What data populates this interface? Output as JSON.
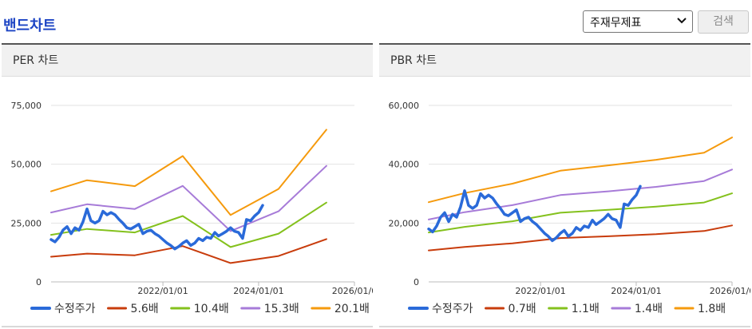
{
  "header": {
    "title": "밴드차트",
    "select_value": "주재무제표",
    "search_label": "검색"
  },
  "chart_data": [
    {
      "type": "line",
      "title": "PER 차트",
      "ylim": [
        0,
        75000
      ],
      "yticks": [
        0,
        25000,
        50000,
        75000
      ],
      "ytick_labels": [
        "0",
        "25,000",
        "50,000",
        "75,000"
      ],
      "xlim": [
        "2019-09-01",
        "2026-01-01"
      ],
      "xtick_labels": [
        "2022/01/01",
        "2024/01/01",
        "2026/01/0"
      ],
      "xticks": [
        "2022-01-01",
        "2024-01-01",
        "2026-01-01"
      ],
      "legend_position": "bottom",
      "grid": true,
      "series": [
        {
          "name": "수정주가",
          "color": "#2a6ad9",
          "points": [
            [
              "2019-09",
              18000
            ],
            [
              "2019-10",
              17000
            ],
            [
              "2019-11",
              19000
            ],
            [
              "2019-12",
              22000
            ],
            [
              "2020-01",
              23500
            ],
            [
              "2020-02",
              20500
            ],
            [
              "2020-03",
              23000
            ],
            [
              "2020-04",
              22000
            ],
            [
              "2020-05",
              25500
            ],
            [
              "2020-06",
              31000
            ],
            [
              "2020-07",
              26000
            ],
            [
              "2020-08",
              25000
            ],
            [
              "2020-09",
              26000
            ],
            [
              "2020-10",
              30000
            ],
            [
              "2020-11",
              28500
            ],
            [
              "2020-12",
              29500
            ],
            [
              "2021-01",
              28500
            ],
            [
              "2021-02",
              26500
            ],
            [
              "2021-03",
              25000
            ],
            [
              "2021-04",
              23000
            ],
            [
              "2021-05",
              22500
            ],
            [
              "2021-06",
              23500
            ],
            [
              "2021-07",
              24500
            ],
            [
              "2021-08",
              20500
            ],
            [
              "2021-09",
              21500
            ],
            [
              "2021-10",
              22000
            ],
            [
              "2021-11",
              20500
            ],
            [
              "2021-12",
              19500
            ],
            [
              "2022-01",
              18000
            ],
            [
              "2022-02",
              16500
            ],
            [
              "2022-03",
              15500
            ],
            [
              "2022-04",
              14000
            ],
            [
              "2022-05",
              15000
            ],
            [
              "2022-06",
              16500
            ],
            [
              "2022-07",
              17500
            ],
            [
              "2022-08",
              15500
            ],
            [
              "2022-09",
              16500
            ],
            [
              "2022-10",
              18500
            ],
            [
              "2022-11",
              17500
            ],
            [
              "2022-12",
              19000
            ],
            [
              "2023-01",
              18500
            ],
            [
              "2023-02",
              21000
            ],
            [
              "2023-03",
              19500
            ],
            [
              "2023-04",
              20500
            ],
            [
              "2023-05",
              21500
            ],
            [
              "2023-06",
              23000
            ],
            [
              "2023-07",
              21500
            ],
            [
              "2023-08",
              21000
            ],
            [
              "2023-09",
              18500
            ],
            [
              "2023-10",
              26500
            ],
            [
              "2023-11",
              26000
            ],
            [
              "2023-12",
              28000
            ],
            [
              "2024-01",
              29500
            ],
            [
              "2024-02",
              32500
            ]
          ]
        },
        {
          "name": "5.6배",
          "color": "#c83c0c",
          "points": [
            [
              "2019-09",
              10700
            ],
            [
              "2020-06",
              12000
            ],
            [
              "2021-06",
              11300
            ],
            [
              "2022-06",
              15200
            ],
            [
              "2023-06",
              8000
            ],
            [
              "2024-06",
              11000
            ],
            [
              "2025-06",
              18200
            ]
          ]
        },
        {
          "name": "10.4배",
          "color": "#84c11d",
          "points": [
            [
              "2019-09",
              20000
            ],
            [
              "2020-06",
              22500
            ],
            [
              "2021-06",
              21000
            ],
            [
              "2022-06",
              28000
            ],
            [
              "2023-06",
              14800
            ],
            [
              "2024-06",
              20500
            ],
            [
              "2025-06",
              33700
            ]
          ]
        },
        {
          "name": "15.3배",
          "color": "#a77bd8",
          "points": [
            [
              "2019-09",
              29500
            ],
            [
              "2020-06",
              33000
            ],
            [
              "2021-06",
              31000
            ],
            [
              "2022-06",
              40800
            ],
            [
              "2023-06",
              21600
            ],
            [
              "2024-06",
              30000
            ],
            [
              "2025-06",
              49300
            ]
          ]
        },
        {
          "name": "20.1배",
          "color": "#f59a0d",
          "points": [
            [
              "2019-09",
              38500
            ],
            [
              "2020-06",
              43200
            ],
            [
              "2021-06",
              40700
            ],
            [
              "2022-06",
              53500
            ],
            [
              "2023-06",
              28400
            ],
            [
              "2024-06",
              39500
            ],
            [
              "2025-06",
              64700
            ]
          ]
        }
      ]
    },
    {
      "type": "line",
      "title": "PBR 차트",
      "ylim": [
        0,
        60000
      ],
      "yticks": [
        0,
        20000,
        40000,
        60000
      ],
      "ytick_labels": [
        "0",
        "20,000",
        "40,000",
        "60,000"
      ],
      "xlim": [
        "2019-09-01",
        "2026-01-01"
      ],
      "xtick_labels": [
        "2022/01/01",
        "2024/01/01",
        "2026/01/0"
      ],
      "xticks": [
        "2022-01-01",
        "2024-01-01",
        "2026-01-01"
      ],
      "legend_position": "bottom",
      "grid": true,
      "series": [
        {
          "name": "수정주가",
          "color": "#2a6ad9",
          "points": [
            [
              "2019-09",
              18000
            ],
            [
              "2019-10",
              17000
            ],
            [
              "2019-11",
              19000
            ],
            [
              "2019-12",
              22000
            ],
            [
              "2020-01",
              23500
            ],
            [
              "2020-02",
              20500
            ],
            [
              "2020-03",
              23000
            ],
            [
              "2020-04",
              22000
            ],
            [
              "2020-05",
              25500
            ],
            [
              "2020-06",
              31000
            ],
            [
              "2020-07",
              26000
            ],
            [
              "2020-08",
              25000
            ],
            [
              "2020-09",
              26000
            ],
            [
              "2020-10",
              30000
            ],
            [
              "2020-11",
              28500
            ],
            [
              "2020-12",
              29500
            ],
            [
              "2021-01",
              28500
            ],
            [
              "2021-02",
              26500
            ],
            [
              "2021-03",
              25000
            ],
            [
              "2021-04",
              23000
            ],
            [
              "2021-05",
              22500
            ],
            [
              "2021-06",
              23500
            ],
            [
              "2021-07",
              24500
            ],
            [
              "2021-08",
              20500
            ],
            [
              "2021-09",
              21500
            ],
            [
              "2021-10",
              22000
            ],
            [
              "2021-11",
              20500
            ],
            [
              "2021-12",
              19500
            ],
            [
              "2022-01",
              18000
            ],
            [
              "2022-02",
              16500
            ],
            [
              "2022-03",
              15500
            ],
            [
              "2022-04",
              14000
            ],
            [
              "2022-05",
              15000
            ],
            [
              "2022-06",
              16500
            ],
            [
              "2022-07",
              17500
            ],
            [
              "2022-08",
              15500
            ],
            [
              "2022-09",
              16500
            ],
            [
              "2022-10",
              18500
            ],
            [
              "2022-11",
              17500
            ],
            [
              "2022-12",
              19000
            ],
            [
              "2023-01",
              18500
            ],
            [
              "2023-02",
              21000
            ],
            [
              "2023-03",
              19500
            ],
            [
              "2023-04",
              20500
            ],
            [
              "2023-05",
              21500
            ],
            [
              "2023-06",
              23000
            ],
            [
              "2023-07",
              21500
            ],
            [
              "2023-08",
              21000
            ],
            [
              "2023-09",
              18500
            ],
            [
              "2023-10",
              26500
            ],
            [
              "2023-11",
              26000
            ],
            [
              "2023-12",
              28000
            ],
            [
              "2024-01",
              29500
            ],
            [
              "2024-02",
              32500
            ]
          ]
        },
        {
          "name": "0.7배",
          "color": "#c83c0c",
          "points": [
            [
              "2019-09",
              10700
            ],
            [
              "2020-06",
              11900
            ],
            [
              "2021-06",
              13100
            ],
            [
              "2022-06",
              14900
            ],
            [
              "2023-06",
              15500
            ],
            [
              "2024-06",
              16200
            ],
            [
              "2025-06",
              17300
            ],
            [
              "2026-01",
              19200
            ]
          ]
        },
        {
          "name": "1.1배",
          "color": "#84c11d",
          "points": [
            [
              "2019-09",
              16800
            ],
            [
              "2020-06",
              18700
            ],
            [
              "2021-06",
              20600
            ],
            [
              "2022-06",
              23500
            ],
            [
              "2023-06",
              24500
            ],
            [
              "2024-06",
              25600
            ],
            [
              "2025-06",
              27000
            ],
            [
              "2026-01",
              30100
            ]
          ]
        },
        {
          "name": "1.4배",
          "color": "#a77bd8",
          "points": [
            [
              "2019-09",
              21200
            ],
            [
              "2020-06",
              23700
            ],
            [
              "2021-06",
              26100
            ],
            [
              "2022-06",
              29500
            ],
            [
              "2023-06",
              30800
            ],
            [
              "2024-06",
              32300
            ],
            [
              "2025-06",
              34300
            ],
            [
              "2026-01",
              38200
            ]
          ]
        },
        {
          "name": "1.8배",
          "color": "#f59a0d",
          "points": [
            [
              "2019-09",
              27100
            ],
            [
              "2020-06",
              30200
            ],
            [
              "2021-06",
              33400
            ],
            [
              "2022-06",
              37800
            ],
            [
              "2023-06",
              39600
            ],
            [
              "2024-06",
              41500
            ],
            [
              "2025-06",
              43900
            ],
            [
              "2026-01",
              49100
            ]
          ]
        }
      ]
    }
  ]
}
